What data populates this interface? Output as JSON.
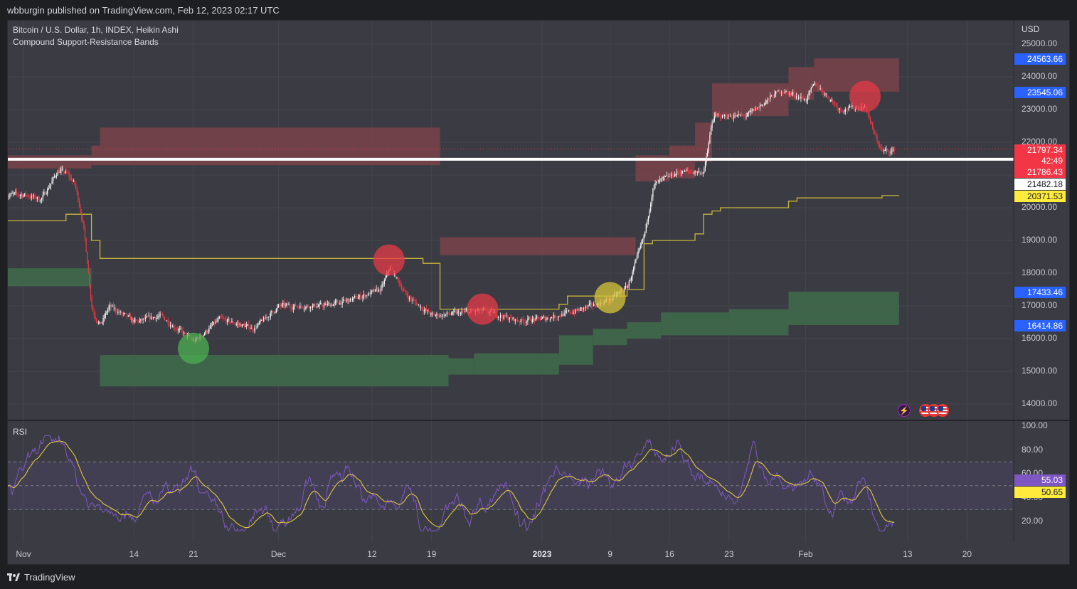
{
  "header": {
    "published_by": "wbburgin published on TradingView.com, Feb 12, 2023 02:17 UTC"
  },
  "legend": {
    "symbol": "Bitcoin / U.S. Dollar, 1h, INDEX, Heikin Ashi",
    "indicator": "Compound Support-Resistance Bands",
    "rsi": "RSI"
  },
  "price_axis": {
    "currency": "USD",
    "ticks": [
      "25000.00",
      "24000.00",
      "23000.00",
      "22000.00",
      "20000.00",
      "19000.00",
      "18000.00",
      "17000.00",
      "16000.00",
      "15000.00",
      "14000.00"
    ]
  },
  "price_tags": [
    {
      "text": "24563.66",
      "bg": "#2962ff",
      "fg": "#ffffff",
      "value": 24563.66
    },
    {
      "text": "23545.06",
      "bg": "#2962ff",
      "fg": "#ffffff",
      "value": 23545.06
    },
    {
      "text": "21797.34",
      "bg": "#f23645",
      "fg": "#ffffff",
      "value": 21797.34
    },
    {
      "text": "42:49",
      "bg": "#f23645",
      "fg": "#ffffff"
    },
    {
      "text": "21786.43",
      "bg": "#f23645",
      "fg": "#ffffff",
      "value": 21786.43
    },
    {
      "text": "21482.18",
      "bg": "#ffffff",
      "fg": "#131722",
      "value": 21482.18
    },
    {
      "text": "20371.53",
      "bg": "#ffeb3b",
      "fg": "#131722",
      "value": 20371.53
    },
    {
      "text": "17433.46",
      "bg": "#2962ff",
      "fg": "#ffffff",
      "value": 17433.46
    },
    {
      "text": "16414.86",
      "bg": "#2962ff",
      "fg": "#ffffff",
      "value": 16414.86
    }
  ],
  "rsi_axis": {
    "ticks": [
      "100.00",
      "80.00",
      "60.00",
      "40.00",
      "20.00"
    ],
    "tags": [
      {
        "text": "55.03",
        "bg": "#7e57c2",
        "fg": "#ffffff",
        "value": 55.03
      },
      {
        "text": "50.65",
        "bg": "#ffeb3b",
        "fg": "#131722",
        "value": 50.65
      }
    ]
  },
  "time_axis": {
    "ticks": [
      {
        "label": "Nov",
        "bold": false
      },
      {
        "label": "14",
        "bold": false
      },
      {
        "label": "21",
        "bold": false
      },
      {
        "label": "Dec",
        "bold": false
      },
      {
        "label": "12",
        "bold": false
      },
      {
        "label": "19",
        "bold": false
      },
      {
        "label": "2023",
        "bold": true
      },
      {
        "label": "9",
        "bold": false
      },
      {
        "label": "16",
        "bold": false
      },
      {
        "label": "23",
        "bold": false
      },
      {
        "label": "Feb",
        "bold": false
      },
      {
        "label": "13",
        "bold": false
      },
      {
        "label": "20",
        "bold": false
      }
    ]
  },
  "events": [
    {
      "icon": "lightning-icon",
      "text": "⚡"
    },
    {
      "icon": "us-flag-icon",
      "text": ""
    },
    {
      "icon": "us-flag-icon",
      "text": ""
    },
    {
      "icon": "us-flag-icon",
      "text": ""
    }
  ],
  "footer": {
    "brand": "TradingView"
  },
  "colors": {
    "background": "#3b3c43",
    "bull": "#ffffff",
    "bear": "#f23645",
    "basis": "#c9b53a",
    "support": "#3f6b4a",
    "resistance": "#7a4249",
    "rsi": "#7e57c2",
    "rsi_ma": "#e3c542"
  },
  "chart_data": {
    "type": "candlestick",
    "style": "Heikin Ashi",
    "symbol": "Bitcoin / U.S. Dollar",
    "interval": "1h",
    "x_range": [
      "2022-11-01",
      "2023-02-12"
    ],
    "ylim": [
      13600,
      25400
    ],
    "price_path": [
      [
        "2022-11-01",
        20400
      ],
      [
        "2022-11-03",
        20250
      ],
      [
        "2022-11-05",
        21150
      ],
      [
        "2022-11-06",
        21050
      ],
      [
        "2022-11-07",
        20700
      ],
      [
        "2022-11-08",
        19400
      ],
      [
        "2022-11-09",
        16800
      ],
      [
        "2022-11-10",
        16400
      ],
      [
        "2022-11-11",
        17000
      ],
      [
        "2022-11-14",
        16500
      ],
      [
        "2022-11-17",
        16700
      ],
      [
        "2022-11-21",
        15900
      ],
      [
        "2022-11-24",
        16600
      ],
      [
        "2022-11-28",
        16300
      ],
      [
        "2022-12-01",
        17000
      ],
      [
        "2022-12-06",
        17000
      ],
      [
        "2022-12-09",
        17150
      ],
      [
        "2022-12-13",
        17500
      ],
      [
        "2022-12-14",
        18200
      ],
      [
        "2022-12-16",
        17300
      ],
      [
        "2022-12-19",
        16700
      ],
      [
        "2022-12-25",
        16850
      ],
      [
        "2022-12-29",
        16550
      ],
      [
        "2023-01-01",
        16600
      ],
      [
        "2023-01-05",
        16850
      ],
      [
        "2023-01-09",
        17200
      ],
      [
        "2023-01-11",
        17600
      ],
      [
        "2023-01-13",
        19200
      ],
      [
        "2023-01-14",
        20700
      ],
      [
        "2023-01-17",
        21100
      ],
      [
        "2023-01-20",
        21100
      ],
      [
        "2023-01-21",
        22800
      ],
      [
        "2023-01-25",
        22800
      ],
      [
        "2023-01-29",
        23600
      ],
      [
        "2023-02-01",
        23300
      ],
      [
        "2023-02-02",
        23800
      ],
      [
        "2023-02-05",
        23000
      ],
      [
        "2023-02-08",
        23100
      ],
      [
        "2023-02-09",
        22200
      ],
      [
        "2023-02-10",
        21700
      ],
      [
        "2023-02-11",
        21750
      ]
    ],
    "basis_line_last": 20371.53,
    "horizontal_line": 21482.18,
    "last_price": 21797.34,
    "band_levels": {
      "upper_top": 24563.66,
      "upper_bottom": 23545.06,
      "lower_top": 17433.46,
      "lower_bottom": 16414.86
    },
    "signals": [
      {
        "date": "2022-11-21",
        "price": 15700,
        "kind": "support"
      },
      {
        "date": "2022-12-14",
        "price": 18400,
        "kind": "resistance"
      },
      {
        "date": "2022-12-25",
        "price": 16900,
        "kind": "resistance"
      },
      {
        "date": "2023-01-09",
        "price": 17250,
        "kind": "basis"
      },
      {
        "date": "2023-02-08",
        "price": 23400,
        "kind": "resistance"
      }
    ],
    "rsi": {
      "name": "RSI",
      "ylim": [
        0,
        100
      ],
      "bands": [
        70,
        50,
        30
      ],
      "last_value": 55.03,
      "last_ma": 50.65
    }
  }
}
